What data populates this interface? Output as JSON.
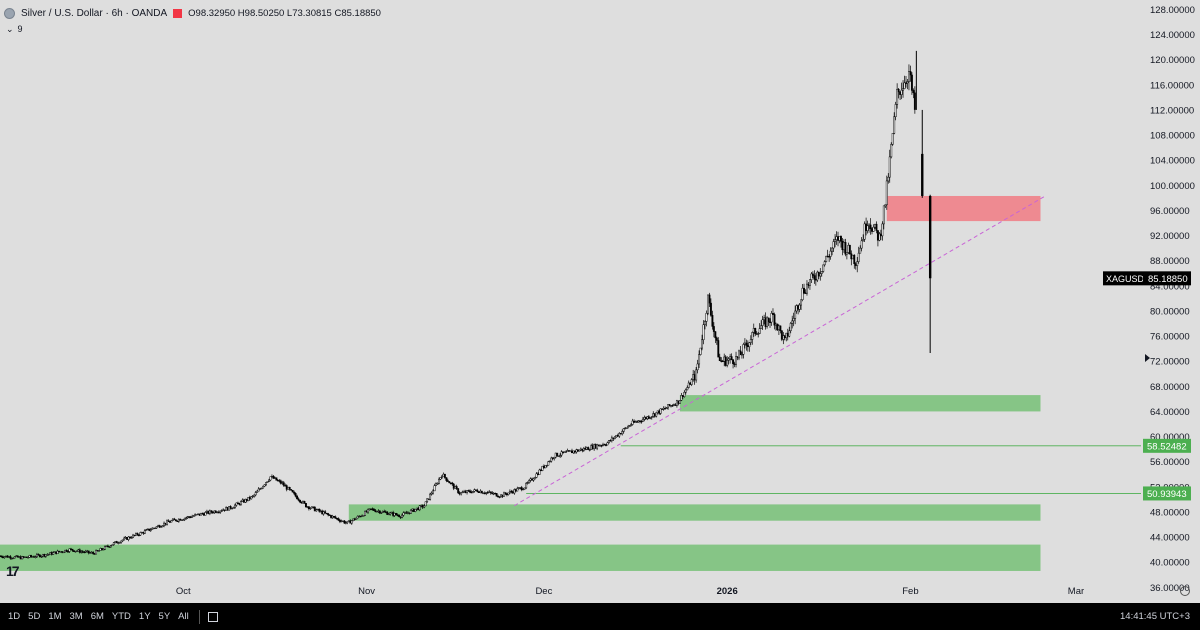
{
  "header": {
    "symbol_title": "Silver / U.S. Dollar · 6h · OANDA",
    "ohlc": "O98.32950 H98.50250 L73.30815 C85.18850",
    "indicator_collapse": "⌄",
    "indicator_count": "9"
  },
  "logo_text": "17",
  "bottom_bar": {
    "timeframes": [
      "1D",
      "5D",
      "1M",
      "3M",
      "6M",
      "YTD",
      "1Y",
      "5Y",
      "All"
    ],
    "clock": "14:41:45 UTC+3"
  },
  "colors": {
    "background": "#dedede",
    "candle_up": "#000000",
    "candle_down": "#000000",
    "demand_zone": "#86c586",
    "supply_zone": "#ee8a91",
    "trendline": "#c964d6",
    "level_line": "#4caf50",
    "price_label": "#000000",
    "level_label": "#4caf50"
  },
  "chart_data": {
    "type": "candlestick",
    "title": "Silver / U.S. Dollar · 6h · OANDA",
    "symbol": "XAGUSD",
    "last_price": "85.18850",
    "y_ticks": [
      "36.00000",
      "40.00000",
      "44.00000",
      "48.00000",
      "52.00000",
      "56.00000",
      "60.00000",
      "64.00000",
      "68.00000",
      "72.00000",
      "76.00000",
      "80.00000",
      "84.00000",
      "88.00000",
      "92.00000",
      "96.00000",
      "100.00000",
      "104.00000",
      "108.00000",
      "112.00000",
      "116.00000",
      "120.00000",
      "124.00000",
      "128.00000"
    ],
    "ylim": [
      33.5,
      129.5
    ],
    "x_ticks": [
      {
        "label": "Oct",
        "date": "2025-10-01"
      },
      {
        "label": "Nov",
        "date": "2025-11-01"
      },
      {
        "label": "Dec",
        "date": "2025-12-01"
      },
      {
        "label": "2026",
        "date": "2026-01-01",
        "bold": true
      },
      {
        "label": "Feb",
        "date": "2026-02-01"
      },
      {
        "label": "Mar",
        "date": "2026-03-01"
      }
    ],
    "xlim": [
      "2025-08-31",
      "2026-03-12"
    ],
    "price_series": [
      {
        "date": "2025-08-31",
        "close": 41.0
      },
      {
        "date": "2025-09-04",
        "close": 40.7
      },
      {
        "date": "2025-09-08",
        "close": 41.2
      },
      {
        "date": "2025-09-12",
        "close": 42.0
      },
      {
        "date": "2025-09-16",
        "close": 41.4
      },
      {
        "date": "2025-09-20",
        "close": 43.2
      },
      {
        "date": "2025-09-24",
        "close": 44.6
      },
      {
        "date": "2025-09-29",
        "close": 46.5
      },
      {
        "date": "2025-10-04",
        "close": 47.6
      },
      {
        "date": "2025-10-09",
        "close": 48.6
      },
      {
        "date": "2025-10-13",
        "close": 50.4
      },
      {
        "date": "2025-10-16",
        "close": 53.6
      },
      {
        "date": "2025-10-18",
        "close": 52.5
      },
      {
        "date": "2025-10-22",
        "close": 49.0
      },
      {
        "date": "2025-10-27",
        "close": 47.0
      },
      {
        "date": "2025-10-29",
        "close": 46.2
      },
      {
        "date": "2025-11-02",
        "close": 48.4
      },
      {
        "date": "2025-11-07",
        "close": 47.4
      },
      {
        "date": "2025-11-11",
        "close": 49.0
      },
      {
        "date": "2025-11-14",
        "close": 54.0
      },
      {
        "date": "2025-11-17",
        "close": 51.0
      },
      {
        "date": "2025-11-20",
        "close": 51.4
      },
      {
        "date": "2025-11-24",
        "close": 50.6
      },
      {
        "date": "2025-11-28",
        "close": 52.0
      },
      {
        "date": "2025-12-03",
        "close": 57.0
      },
      {
        "date": "2025-12-08",
        "close": 58.0
      },
      {
        "date": "2025-12-12",
        "close": 59.0
      },
      {
        "date": "2025-12-16",
        "close": 62.0
      },
      {
        "date": "2025-12-20",
        "close": 63.6
      },
      {
        "date": "2025-12-24",
        "close": 65.6
      },
      {
        "date": "2025-12-27",
        "close": 70.0
      },
      {
        "date": "2025-12-29",
        "close": 82.0
      },
      {
        "date": "2025-12-31",
        "close": 72.0
      },
      {
        "date": "2026-01-03",
        "close": 72.4
      },
      {
        "date": "2026-01-06",
        "close": 76.8
      },
      {
        "date": "2026-01-09",
        "close": 79.2
      },
      {
        "date": "2026-01-11",
        "close": 75.0
      },
      {
        "date": "2026-01-14",
        "close": 83.2
      },
      {
        "date": "2026-01-17",
        "close": 86.6
      },
      {
        "date": "2026-01-20",
        "close": 91.6
      },
      {
        "date": "2026-01-23",
        "close": 88.0
      },
      {
        "date": "2026-01-25",
        "close": 94.6
      },
      {
        "date": "2026-01-27",
        "close": 91.6
      },
      {
        "date": "2026-01-28",
        "close": 97.4
      },
      {
        "date": "2026-01-30",
        "close": 114.4
      },
      {
        "date": "2026-02-01",
        "close": 118.0
      },
      {
        "date": "2026-02-02",
        "close": 112.0
      },
      {
        "date": "2026-02-03",
        "close": 99.0
      },
      {
        "date": "2026-02-04",
        "close": 85.2
      }
    ],
    "final_candles": [
      {
        "date": "2026-02-03",
        "open": 105.0,
        "high": 112.0,
        "low": 98.0,
        "close": 98.3
      },
      {
        "date": "2026-02-04",
        "open": 98.3,
        "high": 98.5,
        "low": 73.3,
        "close": 85.2
      }
    ],
    "peak": {
      "date": "2026-02-02",
      "high": 121.4
    },
    "zones": [
      {
        "type": "supply",
        "from": "2026-01-28",
        "to": "2026-02-23",
        "low": 94.3,
        "high": 98.3
      },
      {
        "type": "demand",
        "from": "2025-12-24",
        "to": "2026-02-23",
        "low": 64.0,
        "high": 66.6
      },
      {
        "type": "demand",
        "from": "2025-10-29",
        "to": "2026-02-23",
        "low": 46.6,
        "high": 49.2
      },
      {
        "type": "demand",
        "from": "2025-08-31",
        "to": "2026-02-23",
        "low": 38.6,
        "high": 42.8
      }
    ],
    "levels": [
      {
        "from": "2025-12-14",
        "price": 58.52482,
        "label": "58.52482"
      },
      {
        "from": "2025-11-28",
        "price": 50.93943,
        "label": "50.93943"
      }
    ],
    "trendline": {
      "from": {
        "date": "2025-11-26",
        "price": 49.0
      },
      "to": {
        "date": "2026-02-24",
        "price": 98.4
      }
    }
  }
}
